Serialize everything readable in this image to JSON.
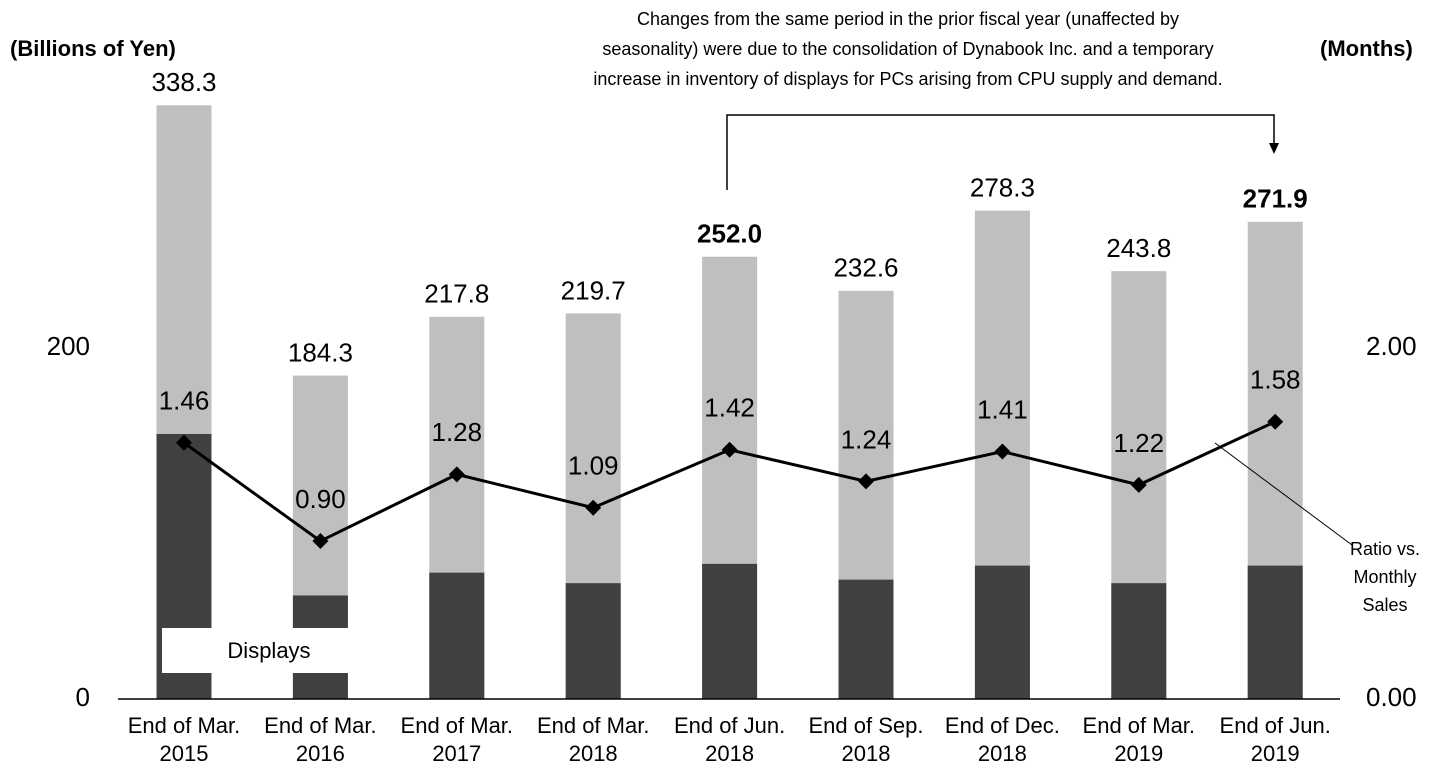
{
  "chart_data": {
    "type": "bar-line",
    "y_label": "(Billions of Yen)",
    "y2_label": "(Months)",
    "annotation": [
      "Changes from the same period in the prior fiscal year (unaffected by",
      "seasonality) were due to the consolidation of Dynabook Inc. and a temporary",
      "increase in inventory of displays for PCs arising from CPU supply and demand."
    ],
    "categories": [
      [
        "End of Mar.",
        "2015"
      ],
      [
        "End of Mar.",
        "2016"
      ],
      [
        "End of Mar.",
        "2017"
      ],
      [
        "End of Mar.",
        "2018"
      ],
      [
        "End of Jun.",
        "2018"
      ],
      [
        "End of Sep.",
        "2018"
      ],
      [
        "End of Dec.",
        "2018"
      ],
      [
        "End of Mar.",
        "2019"
      ],
      [
        "End of Jun.",
        "2019"
      ]
    ],
    "totals": {
      "color": "#bfbfbf",
      "values": [
        338.3,
        184.3,
        217.8,
        219.7,
        252.0,
        232.6,
        278.3,
        243.8,
        271.9
      ],
      "value_labels": [
        "338.3",
        "184.3",
        "217.8",
        "219.7",
        "252.0",
        "232.6",
        "278.3",
        "243.8",
        "271.9"
      ],
      "bold": [
        4,
        8
      ]
    },
    "series": [
      {
        "name": "Displays",
        "color": "#404040",
        "values": [
          151,
          59,
          72,
          66,
          77,
          68,
          76,
          66,
          76
        ]
      },
      {
        "name": "Ratio vs. Monthly Sales",
        "color": "#000000",
        "axis": "y2",
        "values": [
          1.46,
          0.9,
          1.28,
          1.09,
          1.42,
          1.24,
          1.41,
          1.22,
          1.58
        ],
        "value_labels": [
          "1.46",
          "0.90",
          "1.28",
          "1.09",
          "1.42",
          "1.24",
          "1.41",
          "1.22",
          "1.58"
        ]
      }
    ],
    "ylim": [
      0,
      350
    ],
    "yticks": [
      0,
      200
    ],
    "y2lim": [
      0,
      3.5
    ],
    "y2ticks": [
      {
        "value": 0,
        "label": "0.00"
      },
      {
        "value": 2,
        "label": "2.00"
      }
    ]
  }
}
